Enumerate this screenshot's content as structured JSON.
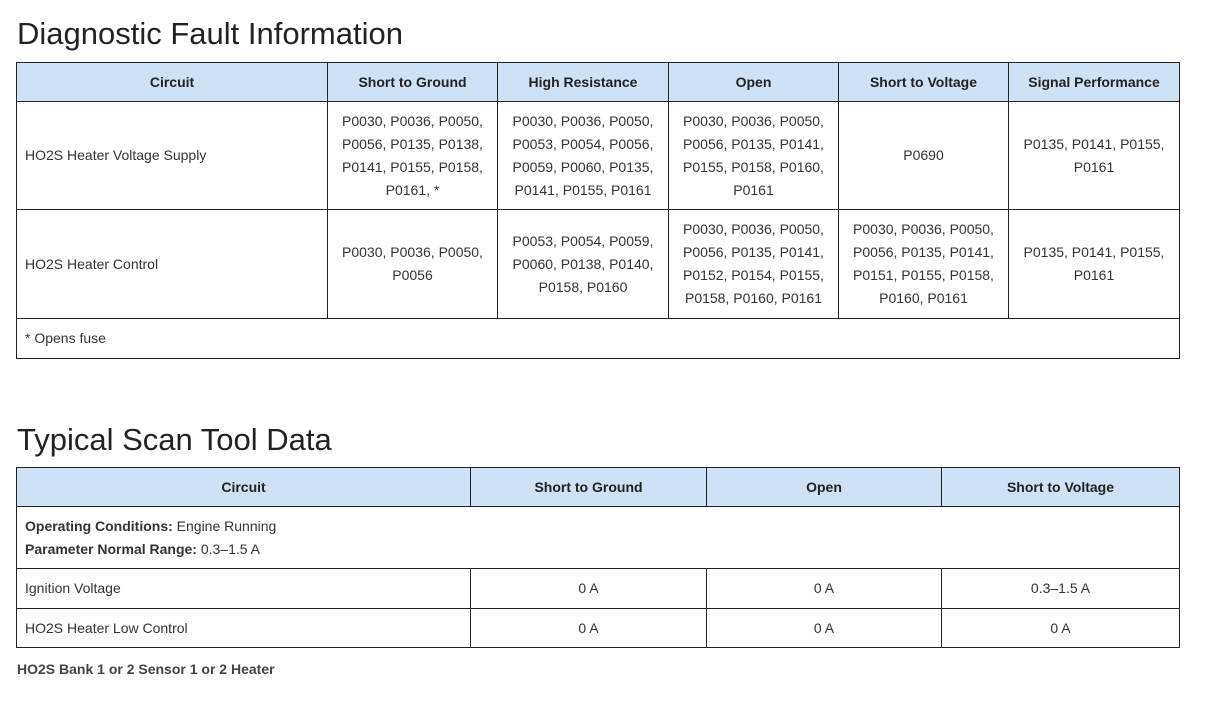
{
  "fault": {
    "title": "Diagnostic Fault Information",
    "headers": [
      "Circuit",
      "Short to Ground",
      "High Resistance",
      "Open",
      "Short to Voltage",
      "Signal Performance"
    ],
    "rows": [
      [
        "HO2S Heater Voltage Supply",
        "P0030, P0036, P0050, P0056, P0135, P0138, P0141, P0155, P0158, P0161, *",
        "P0030, P0036, P0050, P0053, P0054, P0056, P0059, P0060, P0135, P0141, P0155, P0161",
        "P0030, P0036, P0050, P0056, P0135, P0141, P0155, P0158, P0160, P0161",
        "P0690",
        "P0135, P0141, P0155, P0161"
      ],
      [
        "HO2S Heater Control",
        "P0030, P0036, P0050, P0056",
        "P0053, P0054, P0059, P0060, P0138, P0140, P0158, P0160",
        "P0030, P0036, P0050, P0056, P0135, P0141, P0152, P0154, P0155, P0158, P0160, P0161",
        "P0030, P0036, P0050, P0056, P0135, P0141, P0151, P0155, P0158, P0160, P0161",
        "P0135, P0141, P0155, P0161"
      ]
    ],
    "footnote": "* Opens fuse"
  },
  "scan": {
    "title": "Typical Scan Tool Data",
    "headers": [
      "Circuit",
      "Short to Ground",
      "Open",
      "Short to Voltage"
    ],
    "conditions_label": "Operating Conditions:",
    "conditions_value": " Engine Running",
    "range_label": "Parameter Normal Range:",
    "range_value": " 0.3–1.5 A",
    "rows": [
      [
        "Ignition Voltage",
        "0 A",
        "0 A",
        "0.3–1.5 A"
      ],
      [
        "HO2S Heater Low Control",
        "0 A",
        "0 A",
        "0 A"
      ]
    ],
    "caption": "HO2S Bank 1 or 2 Sensor 1 or 2 Heater"
  }
}
